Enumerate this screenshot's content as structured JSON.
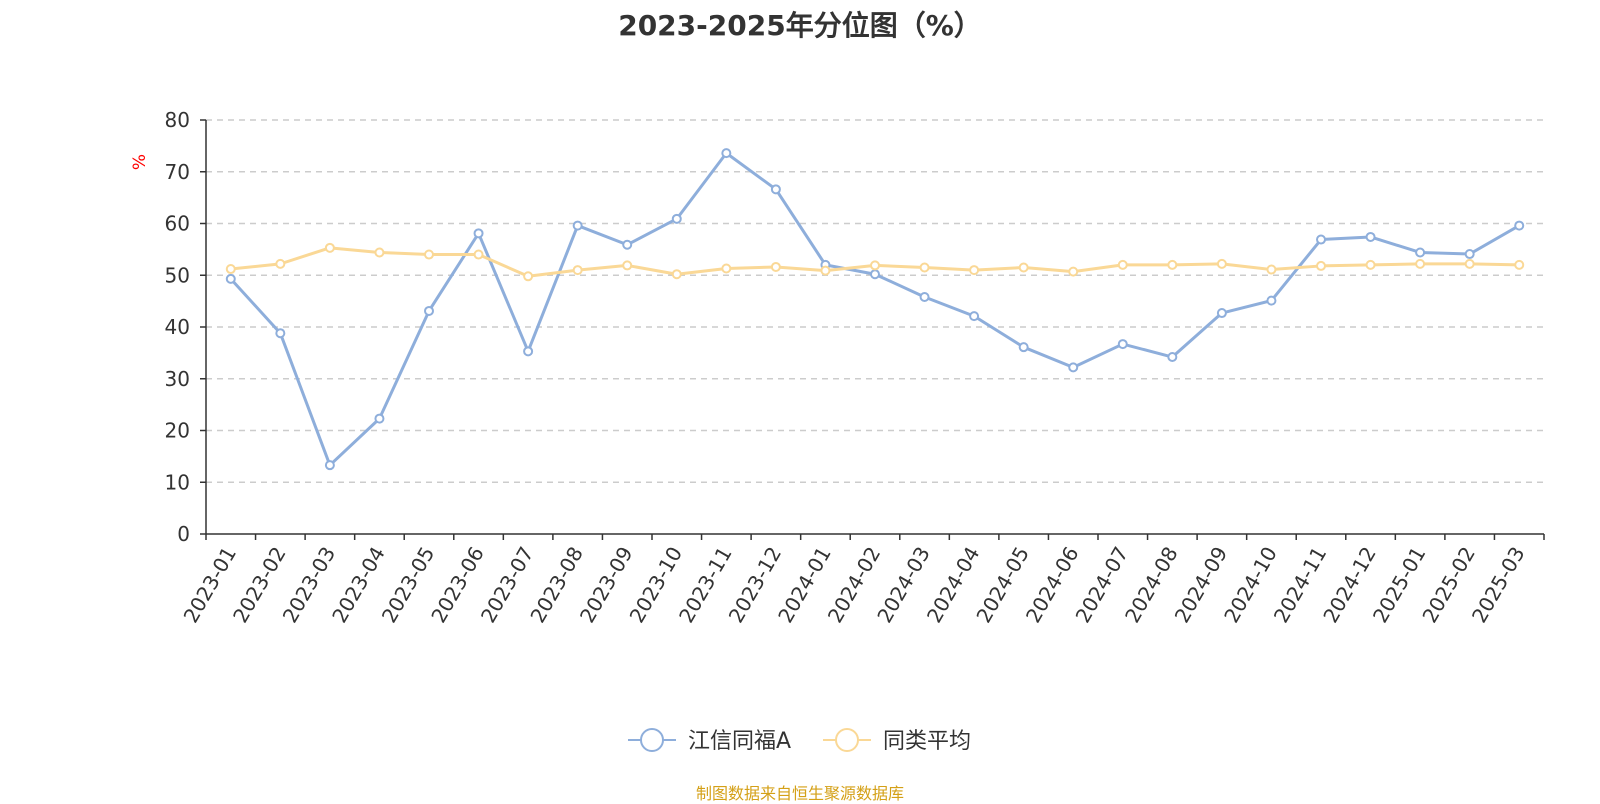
{
  "chart_data": {
    "type": "line",
    "title": "2023-2025年分位图（%）",
    "ylabel": "%",
    "ylim": [
      0,
      80
    ],
    "yticks": [
      0,
      10,
      20,
      30,
      40,
      50,
      60,
      70,
      80
    ],
    "grid": true,
    "legend_position": "bottom-center",
    "categories": [
      "2023-01",
      "2023-02",
      "2023-03",
      "2023-04",
      "2023-05",
      "2023-06",
      "2023-07",
      "2023-08",
      "2023-09",
      "2023-10",
      "2023-11",
      "2023-12",
      "2024-01",
      "2024-02",
      "2024-03",
      "2024-04",
      "2024-05",
      "2024-06",
      "2024-07",
      "2024-08",
      "2024-09",
      "2024-10",
      "2024-11",
      "2024-12",
      "2025-01",
      "2025-02",
      "2025-03"
    ],
    "series": [
      {
        "name": "江信同福A",
        "color": "#8eaedb",
        "values": [
          49.3,
          38.8,
          13.3,
          22.3,
          43.1,
          58.1,
          35.3,
          59.6,
          55.9,
          60.9,
          73.6,
          66.6,
          52.0,
          50.2,
          45.8,
          42.1,
          36.1,
          32.2,
          36.7,
          34.2,
          42.7,
          45.1,
          56.9,
          57.4,
          54.4,
          54.1,
          59.6
        ]
      },
      {
        "name": "同类平均",
        "color": "#fad896",
        "values": [
          51.2,
          52.2,
          55.3,
          54.4,
          54.0,
          54.0,
          49.8,
          51.0,
          51.9,
          50.2,
          51.3,
          51.6,
          50.9,
          51.9,
          51.5,
          51.0,
          51.5,
          50.7,
          52.0,
          52.0,
          52.2,
          51.1,
          51.8,
          52.0,
          52.2,
          52.2,
          52.0
        ]
      }
    ]
  },
  "footer": {
    "source": "制图数据来自恒生聚源数据库"
  }
}
